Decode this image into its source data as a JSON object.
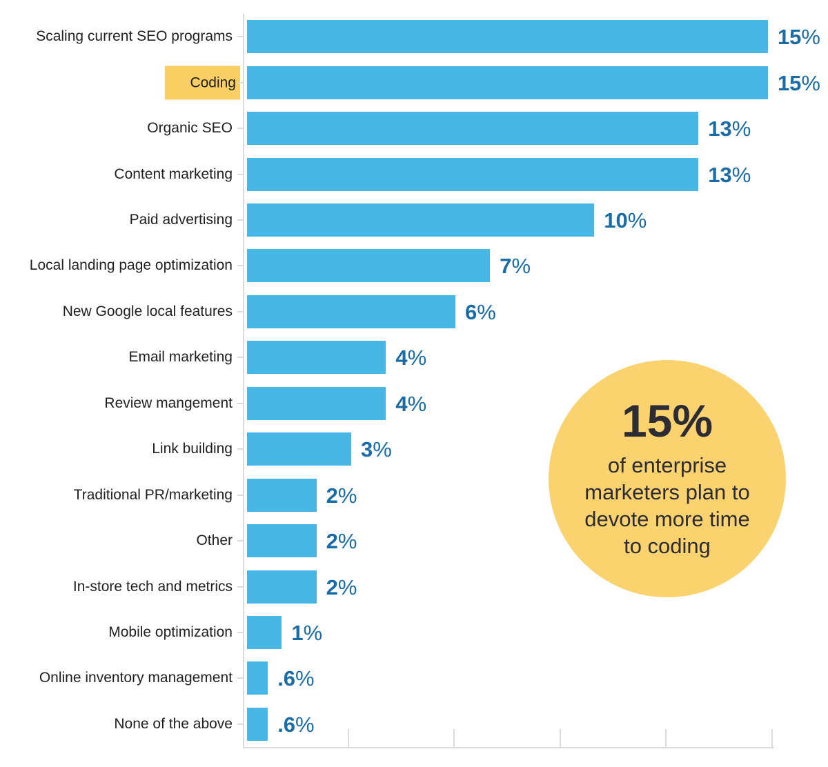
{
  "chart_data": {
    "type": "bar",
    "orientation": "horizontal",
    "title": "",
    "xlabel": "",
    "ylabel": "",
    "categories": [
      "Scaling current SEO programs",
      "Coding",
      "Organic SEO",
      "Content marketing",
      "Paid advertising",
      "Local landing page optimization",
      "New Google local features",
      "Email marketing",
      "Review mangement",
      "Link building",
      "Traditional PR/marketing",
      "Other",
      "In-store tech and metrics",
      "Mobile optimization",
      "Online inventory management",
      "None of the above"
    ],
    "values": [
      15,
      15,
      13,
      13,
      10,
      7,
      6,
      4,
      4,
      3,
      2,
      2,
      2,
      1,
      0.6,
      0.6
    ],
    "value_labels": [
      "15",
      "15",
      "13",
      "13",
      "10",
      "7",
      "6",
      "4",
      "4",
      "3",
      "2",
      "2",
      "2",
      "1",
      ".6",
      ".6"
    ],
    "unit": "%",
    "highlighted_category": "Coding",
    "xlim": [
      0,
      15.3
    ],
    "x_tick_count": 5,
    "grid": false,
    "legend": "none",
    "colors": {
      "bar": "#49b7e5",
      "value_text": "#1a6ca6",
      "category_text": "#1f1f1f",
      "highlight_bg": "#f9ce63",
      "axis": "#dadada"
    }
  },
  "callout": {
    "headline": "15%",
    "lines": [
      "of enterprise",
      "marketers plan to",
      "devote more time",
      "to coding"
    ],
    "bg_color": "#fad36e",
    "text_color": "#2d2c34"
  }
}
